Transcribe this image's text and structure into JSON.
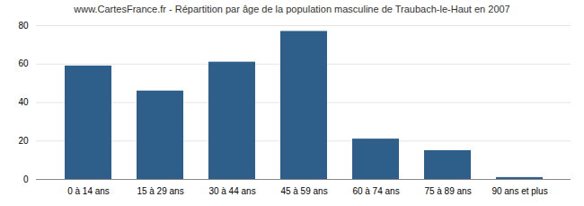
{
  "chart_data": {
    "type": "bar",
    "title": "www.CartesFrance.fr - Répartition par âge de la population masculine de Traubach-le-Haut en 2007",
    "categories": [
      "0 à 14 ans",
      "15 à 29 ans",
      "30 à 44 ans",
      "45 à 59 ans",
      "60 à 74 ans",
      "75 à 89 ans",
      "90 ans et plus"
    ],
    "values": [
      59,
      46,
      61,
      77,
      21,
      15,
      1
    ],
    "color": "#2e5f8a",
    "ylim": [
      0,
      80
    ],
    "yticks": [
      0,
      20,
      40,
      60,
      80
    ],
    "grid": true
  }
}
